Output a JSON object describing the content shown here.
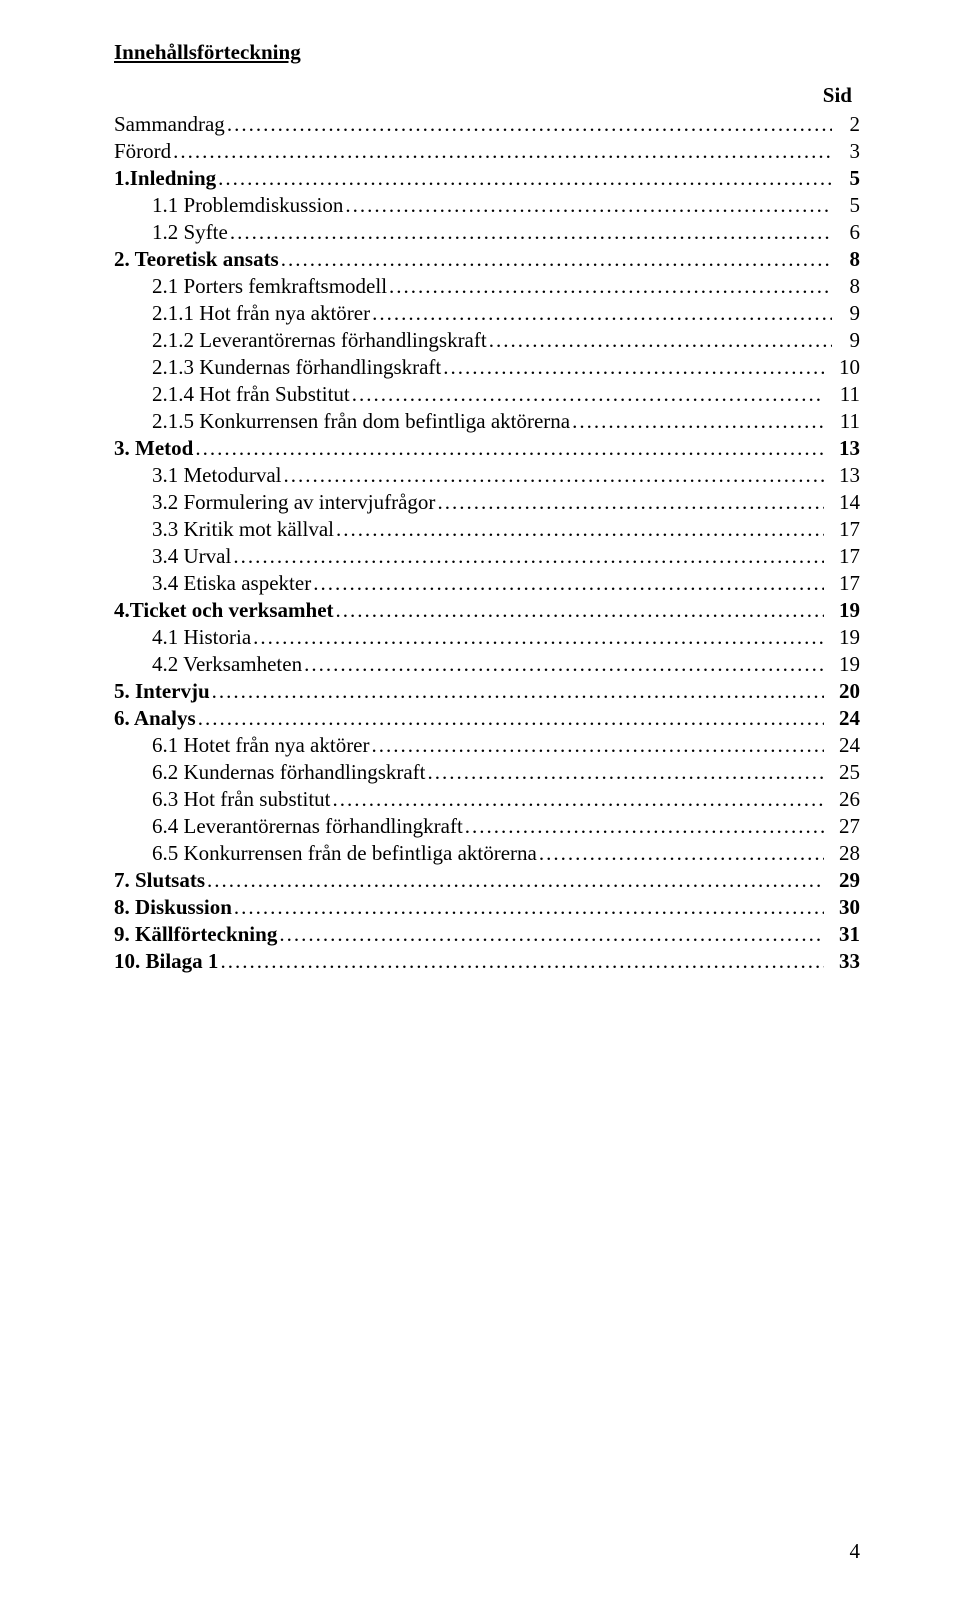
{
  "title": "Innehållsförteckning",
  "sid_label": "Sid",
  "page_number": "4",
  "rows": [
    {
      "label": "Sammandrag",
      "page": "2",
      "indent": 0,
      "bold": false,
      "dots": 1
    },
    {
      "label": "Förord",
      "page": "3",
      "indent": 0,
      "bold": false,
      "dots": 1
    },
    {
      "label": "1.Inledning",
      "page": "5",
      "indent": 0,
      "bold": true,
      "dots": 2
    },
    {
      "label": "1.1 Problemdiskussion",
      "page": " 5",
      "indent": 1,
      "bold": false,
      "dots": 2
    },
    {
      "label": "1.2 Syfte",
      "page": "6",
      "indent": 1,
      "bold": false,
      "dots": 2
    },
    {
      "label": "2. Teoretisk ansats",
      "page": "8",
      "indent": 0,
      "bold": true,
      "dots": 2
    },
    {
      "label": "2.1 Porters femkraftsmodell",
      "page": "8",
      "indent": 1,
      "bold": false,
      "dots": 2
    },
    {
      "label": "2.1.1 Hot från nya aktörer",
      "page": " 9",
      "indent": 1,
      "bold": false,
      "dots": 2
    },
    {
      "label": "2.1.2 Leverantörernas förhandlingskraft",
      "page": " 9",
      "indent": 1,
      "bold": false,
      "dots": 2
    },
    {
      "label": "2.1.3 Kundernas förhandlingskraft",
      "page": " 10",
      "indent": 1,
      "bold": false,
      "dots": 2
    },
    {
      "label": "2.1.4 Hot från Substitut",
      "page": "11",
      "indent": 1,
      "bold": false,
      "dots": 2
    },
    {
      "label": "2.1.5 Konkurrensen från dom befintliga aktörerna",
      "page": "11",
      "indent": 1,
      "bold": false,
      "dots": 2
    },
    {
      "label": "3. Metod",
      "page": "13",
      "indent": 0,
      "bold": true,
      "dots": 2
    },
    {
      "label": "3.1 Metodurval",
      "page": "13",
      "indent": 1,
      "bold": false,
      "dots": 2
    },
    {
      "label": "3.2 Formulering av intervjufrågor",
      "page": "14",
      "indent": 1,
      "bold": false,
      "dots": 2
    },
    {
      "label": "3.3 Kritik mot källval",
      "page": "17",
      "indent": 1,
      "bold": false,
      "dots": 2
    },
    {
      "label": "3.4 Urval",
      "page": "17",
      "indent": 1,
      "bold": false,
      "dots": 2
    },
    {
      "label": "3.4 Etiska aspekter ",
      "page": "17",
      "indent": 1,
      "bold": false,
      "dots": 2
    },
    {
      "label": "4.Ticket och verksamhet",
      "page": "19",
      "indent": 0,
      "bold": true,
      "dots": 2
    },
    {
      "label": "4.1 Historia",
      "page": "19",
      "indent": 1,
      "bold": false,
      "dots": 2
    },
    {
      "label": "4.2 Verksamheten",
      "page": " 19",
      "indent": 1,
      "bold": false,
      "dots": 2
    },
    {
      "label": "5. Intervju",
      "page": "20",
      "indent": 0,
      "bold": true,
      "dots": 2
    },
    {
      "label": "6. Analys",
      "page": "24",
      "indent": 0,
      "bold": true,
      "dots": 2
    },
    {
      "label": "6.1 Hotet från nya aktörer",
      "page": "24",
      "indent": 1,
      "bold": false,
      "dots": 2
    },
    {
      "label": "6.2 Kundernas förhandlingskraft",
      "page": "25",
      "indent": 1,
      "bold": false,
      "dots": 2
    },
    {
      "label": "6.3 Hot från substitut",
      "page": "26",
      "indent": 1,
      "bold": false,
      "dots": 2
    },
    {
      "label": "6.4 Leverantörernas förhandlingkraft",
      "page": "27",
      "indent": 1,
      "bold": false,
      "dots": 2
    },
    {
      "label": "6.5 Konkurrensen från de befintliga aktörerna",
      "page": "28",
      "indent": 1,
      "bold": false,
      "dots": 2
    },
    {
      "label": "7. Slutsats",
      "page": "29",
      "indent": 0,
      "bold": true,
      "dots": 2
    },
    {
      "label": "8. Diskussion",
      "page": "30",
      "indent": 0,
      "bold": true,
      "dots": 2
    },
    {
      "label": "9. Källförteckning",
      "page": "31",
      "indent": 0,
      "bold": true,
      "dots": 2
    },
    {
      "label": "10. Bilaga 1",
      "page": "33",
      "indent": 0,
      "bold": true,
      "dots": 2
    }
  ]
}
